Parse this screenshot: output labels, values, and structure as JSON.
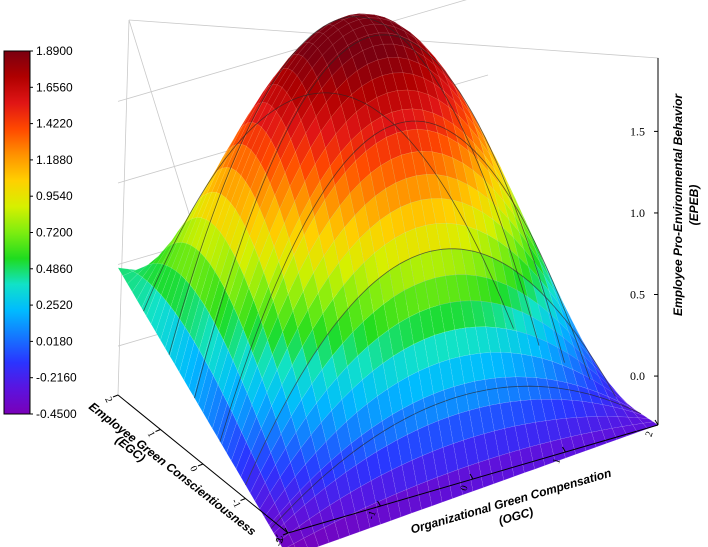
{
  "chart_data": {
    "type": "surface3d",
    "title": "",
    "xlabel": "Organizational Green Compensation (OGC)",
    "ylabel": "Employee Green Conscientiousness (EGC)",
    "zlabel": "Employee Pro-Environmental Behavior (EPEB)",
    "x_ticks": [
      "-2",
      "-1",
      "0",
      "1",
      "2"
    ],
    "y_ticks": [
      "-2",
      "-1",
      "0",
      "1",
      "2"
    ],
    "z_ticks": [
      "0.0",
      "0.5",
      "1.0",
      "1.5"
    ],
    "xlim": [
      -2,
      2
    ],
    "ylim": [
      -2,
      2
    ],
    "zlim": [
      -0.3,
      1.95
    ],
    "surface_corners": {
      "ogc_-2_egc_2": 0.48,
      "ogc_2_egc_2": -0.45,
      "ogc_-2_egc_-2": -0.45,
      "ogc_2_egc_-2": -0.3
    },
    "surface_peak": {
      "ogc": -0.5,
      "egc": 0.8,
      "epeb": 1.89
    },
    "colorbar": {
      "min": -0.45,
      "max": 1.89,
      "labels": [
        "1.8900",
        "1.6560",
        "1.4220",
        "1.1880",
        "0.9540",
        "0.7200",
        "0.4860",
        "0.2520",
        "0.0180",
        "-0.2160",
        "-0.4500"
      ],
      "colors": [
        "#7a0010",
        "#b00000",
        "#e01515",
        "#ff4800",
        "#ff9200",
        "#ffd000",
        "#d6f000",
        "#7ded10",
        "#1fdc1f",
        "#11e2c8",
        "#00bbff",
        "#1478ff",
        "#2a35ff",
        "#5a14e0",
        "#7a00b8"
      ]
    }
  }
}
